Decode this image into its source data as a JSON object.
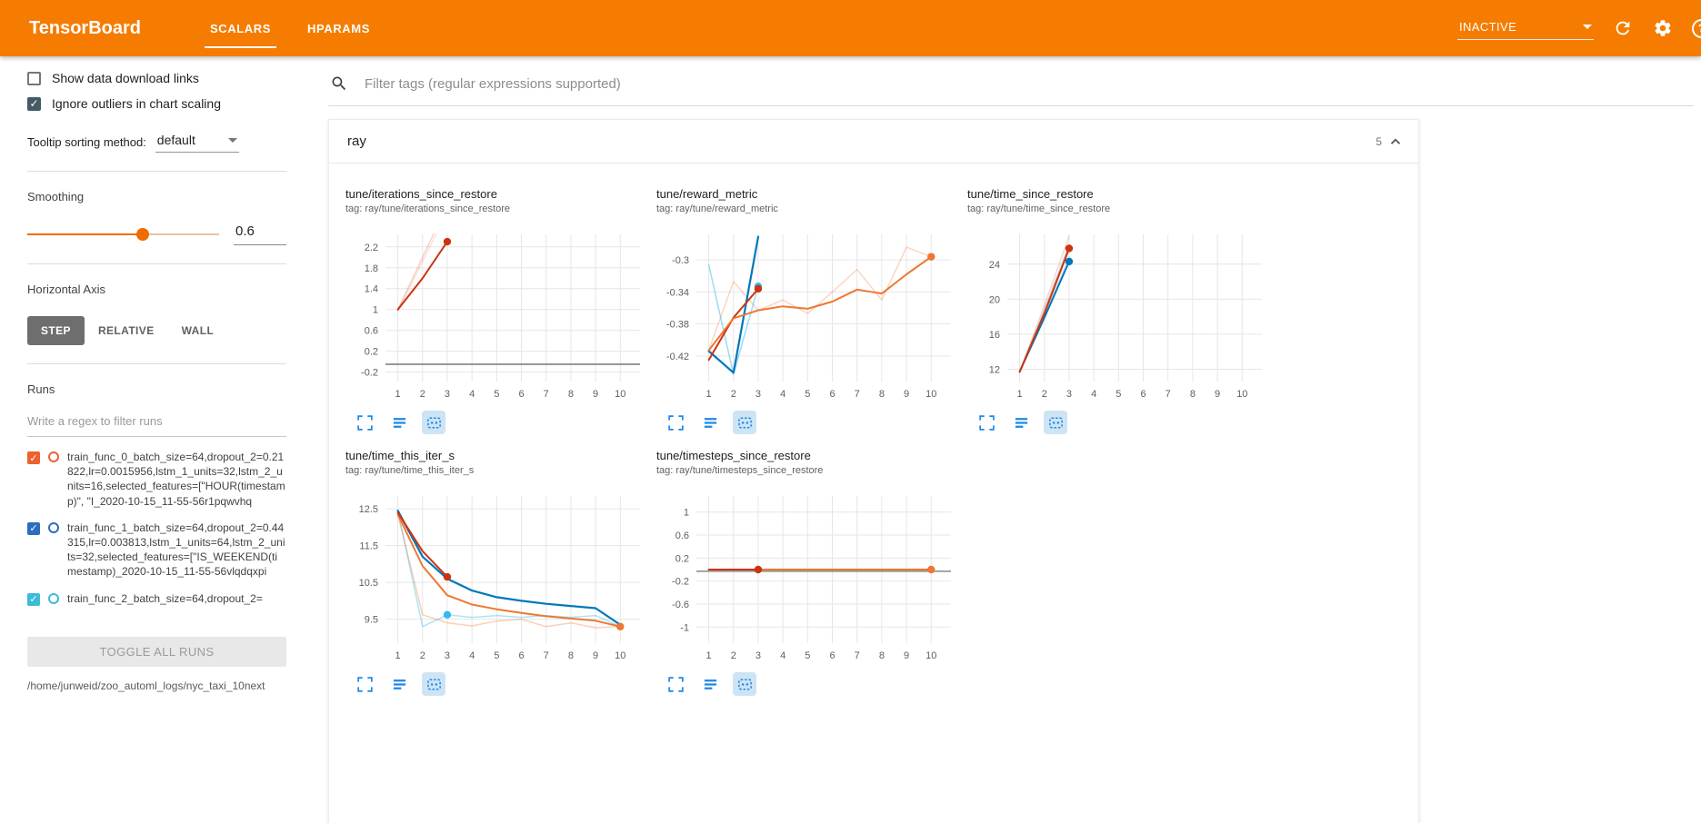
{
  "header": {
    "title": "TensorBoard",
    "tabs": [
      {
        "label": "SCALARS",
        "active": true
      },
      {
        "label": "HPARAMS",
        "active": false
      }
    ],
    "status": "INACTIVE",
    "accent_color": "#f57c00"
  },
  "sidebar": {
    "show_download_label": "Show data download links",
    "show_download_checked": false,
    "ignore_outliers_label": "Ignore outliers in chart scaling",
    "ignore_outliers_checked": true,
    "tooltip_sorting_label": "Tooltip sorting method:",
    "tooltip_sorting_value": "default",
    "smoothing_label": "Smoothing",
    "smoothing_value": "0.6",
    "horizontal_axis_label": "Horizontal Axis",
    "axis_options": [
      "STEP",
      "RELATIVE",
      "WALL"
    ],
    "axis_selected": "STEP",
    "runs_label": "Runs",
    "runs_filter_placeholder": "Write a regex to filter runs",
    "runs": [
      {
        "label": "train_func_0_batch_size=64,dropout_2=0.21822,lr=0.0015956,lstm_1_units=32,lstm_2_units=16,selected_features=[\"HOUR(timestamp)\", \"I_2020-10-15_11-55-56r1pqwvhq",
        "checked": true,
        "color": "#ee6130"
      },
      {
        "label": "train_func_1_batch_size=64,dropout_2=0.44315,lr=0.003813,lstm_1_units=64,lstm_2_units=32,selected_features=[\"IS_WEEKEND(timestamp)_2020-10-15_11-55-56vlqdqxpi",
        "checked": true,
        "color": "#2b6dbf"
      },
      {
        "label": "train_func_2_batch_size=64,dropout_2=",
        "checked": true,
        "color": "#3dbbd9"
      }
    ],
    "toggle_all_label": "TOGGLE ALL RUNS",
    "log_dir": "/home/junweid/zoo_automl_logs/nyc_taxi_10next"
  },
  "main": {
    "filter_placeholder": "Filter tags (regular expressions supported)",
    "group": {
      "title": "ray",
      "count": "5"
    }
  },
  "chart_data": [
    {
      "type": "line",
      "title": "tune/iterations_since_restore",
      "tag": "tag: ray/tune/iterations_since_restore",
      "xlim": [
        0.5,
        10.8
      ],
      "ylim": [
        -0.38,
        2.44
      ],
      "xticks": [
        1,
        2,
        3,
        4,
        5,
        6,
        7,
        8,
        9,
        10
      ],
      "yticks": [
        2.2,
        1.8,
        1.4,
        1,
        0.6,
        0.2,
        -0.2
      ],
      "series": [
        {
          "name": "train_func_0 raw",
          "color": "#cc3311",
          "opacity": 0.22,
          "width": 1.5,
          "points": [
            [
              1,
              1
            ],
            [
              2,
              2
            ],
            [
              3,
              3
            ]
          ]
        },
        {
          "name": "train_func_2 raw",
          "color": "#ee7733",
          "opacity": 0.22,
          "width": 1.5,
          "points": [
            [
              1,
              0.97
            ],
            [
              2,
              1.92
            ],
            [
              3,
              2.87
            ]
          ]
        },
        {
          "name": "constant run",
          "color": "#777777",
          "opacity": 1,
          "width": 1.5,
          "points": [
            [
              0.5,
              -0.05
            ],
            [
              10.8,
              -0.05
            ]
          ]
        },
        {
          "name": "train_func_0 smoothed",
          "color": "#cc3311",
          "opacity": 1,
          "width": 2,
          "points": [
            [
              1,
              1
            ],
            [
              2,
              1.6
            ],
            [
              3,
              2.3
            ]
          ],
          "dots": [
            [
              3,
              2.3
            ]
          ]
        }
      ]
    },
    {
      "type": "line",
      "title": "tune/reward_metric",
      "tag": "tag: ray/tune/reward_metric",
      "xlim": [
        0.5,
        10.8
      ],
      "ylim": [
        -0.452,
        -0.268
      ],
      "xticks": [
        1,
        2,
        3,
        4,
        5,
        6,
        7,
        8,
        9,
        10
      ],
      "yticks": [
        -0.3,
        -0.34,
        -0.38,
        -0.42
      ],
      "series": [
        {
          "name": "orange raw",
          "color": "#ee7733",
          "opacity": 0.3,
          "width": 1.5,
          "points": [
            [
              1,
              -0.413
            ],
            [
              2,
              -0.327
            ],
            [
              3,
              -0.363
            ],
            [
              4,
              -0.35
            ],
            [
              5,
              -0.367
            ],
            [
              6,
              -0.34
            ],
            [
              7,
              -0.312
            ],
            [
              8,
              -0.35
            ],
            [
              9,
              -0.284
            ],
            [
              10,
              -0.296
            ]
          ]
        },
        {
          "name": "cyan raw",
          "color": "#33bbee",
          "opacity": 0.5,
          "width": 1.5,
          "points": [
            [
              1,
              -0.306
            ],
            [
              2,
              -0.443
            ],
            [
              3,
              -0.333
            ]
          ],
          "dots": [
            [
              3,
              -0.333
            ]
          ]
        },
        {
          "name": "blue smoothed",
          "color": "#0077bb",
          "opacity": 1,
          "width": 2.2,
          "points": [
            [
              1,
              -0.414
            ],
            [
              2,
              -0.441
            ],
            [
              3,
              -0.271
            ]
          ]
        },
        {
          "name": "red smoothed",
          "color": "#cc3311",
          "opacity": 1,
          "width": 2,
          "points": [
            [
              1,
              -0.425
            ],
            [
              2,
              -0.372
            ],
            [
              3,
              -0.336
            ]
          ],
          "dots": [
            [
              3,
              -0.336
            ]
          ]
        },
        {
          "name": "orange smoothed",
          "color": "#ee7733",
          "opacity": 1,
          "width": 2,
          "points": [
            [
              1,
              -0.413
            ],
            [
              2,
              -0.373
            ],
            [
              3,
              -0.363
            ],
            [
              4,
              -0.358
            ],
            [
              5,
              -0.361
            ],
            [
              6,
              -0.352
            ],
            [
              7,
              -0.337
            ],
            [
              8,
              -0.342
            ],
            [
              9,
              -0.318
            ],
            [
              10,
              -0.296
            ]
          ],
          "dots": [
            [
              10,
              -0.296
            ]
          ]
        }
      ]
    },
    {
      "type": "line",
      "title": "tune/time_since_restore",
      "tag": "tag: ray/tune/time_since_restore",
      "xlim": [
        0.5,
        10.8
      ],
      "ylim": [
        10.6,
        27.4
      ],
      "xticks": [
        1,
        2,
        3,
        4,
        5,
        6,
        7,
        8,
        9,
        10
      ],
      "yticks": [
        24,
        20,
        16,
        12
      ],
      "series": [
        {
          "name": "red raw",
          "color": "#cc3311",
          "opacity": 0.2,
          "width": 1.5,
          "points": [
            [
              1,
              11.7
            ],
            [
              2,
              19.3
            ],
            [
              3,
              27.2
            ]
          ]
        },
        {
          "name": "gray raw",
          "color": "#999999",
          "opacity": 0.45,
          "width": 1.5,
          "points": [
            [
              1,
              11.7
            ],
            [
              2,
              18.8
            ],
            [
              3,
              26.2
            ]
          ]
        },
        {
          "name": "cyan raw",
          "color": "#33bbee",
          "opacity": 0.3,
          "width": 1.5,
          "points": [
            [
              1,
              11.8
            ],
            [
              2,
              18.1
            ],
            [
              3,
              24.8
            ]
          ]
        },
        {
          "name": "blue smoothed",
          "color": "#0077bb",
          "opacity": 1,
          "width": 2,
          "points": [
            [
              1,
              11.75
            ],
            [
              2,
              17.9
            ],
            [
              3,
              24.3
            ]
          ],
          "dots": [
            [
              3,
              24.3
            ]
          ]
        },
        {
          "name": "red smoothed",
          "color": "#cc3311",
          "opacity": 1,
          "width": 2,
          "points": [
            [
              1,
              11.7
            ],
            [
              2,
              18.4
            ],
            [
              3,
              25.8
            ]
          ],
          "dots": [
            [
              3,
              25.8
            ]
          ]
        }
      ]
    },
    {
      "type": "line",
      "title": "tune/time_this_iter_s",
      "tag": "tag: ray/tune/time_this_iter_s",
      "xlim": [
        0.5,
        10.8
      ],
      "ylim": [
        8.85,
        12.85
      ],
      "xticks": [
        1,
        2,
        3,
        4,
        5,
        6,
        7,
        8,
        9,
        10
      ],
      "yticks": [
        12.5,
        11.5,
        10.5,
        9.5
      ],
      "series": [
        {
          "name": "cyan raw",
          "color": "#33bbee",
          "opacity": 0.4,
          "width": 1.5,
          "points": [
            [
              1,
              12.45
            ],
            [
              2,
              9.3
            ],
            [
              3,
              9.62
            ],
            [
              4,
              9.55
            ],
            [
              5,
              9.6
            ],
            [
              6,
              9.55
            ],
            [
              7,
              9.6
            ],
            [
              8,
              9.55
            ],
            [
              9,
              9.6
            ],
            [
              10,
              9.3
            ]
          ],
          "dots": [
            [
              3,
              9.62
            ]
          ]
        },
        {
          "name": "orange raw",
          "color": "#ee7733",
          "opacity": 0.35,
          "width": 1.5,
          "points": [
            [
              1,
              12.35
            ],
            [
              2,
              9.62
            ],
            [
              3,
              9.4
            ],
            [
              4,
              9.32
            ],
            [
              5,
              9.45
            ],
            [
              6,
              9.5
            ],
            [
              7,
              9.3
            ],
            [
              8,
              9.4
            ],
            [
              9,
              9.27
            ],
            [
              10,
              9.3
            ]
          ]
        },
        {
          "name": "blue smoothed",
          "color": "#0077bb",
          "opacity": 1,
          "width": 2.2,
          "points": [
            [
              1,
              12.45
            ],
            [
              2,
              11.2
            ],
            [
              3,
              10.6
            ],
            [
              4,
              10.28
            ],
            [
              5,
              10.1
            ],
            [
              6,
              10.0
            ],
            [
              7,
              9.92
            ],
            [
              8,
              9.86
            ],
            [
              9,
              9.8
            ],
            [
              10,
              9.35
            ]
          ]
        },
        {
          "name": "orange smoothed",
          "color": "#ee7733",
          "opacity": 1,
          "width": 2,
          "points": [
            [
              1,
              12.35
            ],
            [
              2,
              10.95
            ],
            [
              3,
              10.15
            ],
            [
              4,
              9.9
            ],
            [
              5,
              9.77
            ],
            [
              6,
              9.67
            ],
            [
              7,
              9.58
            ],
            [
              8,
              9.52
            ],
            [
              9,
              9.46
            ],
            [
              10,
              9.3
            ]
          ],
          "dots": [
            [
              10,
              9.3
            ]
          ]
        },
        {
          "name": "red smoothed",
          "color": "#cc3311",
          "opacity": 1,
          "width": 2,
          "points": [
            [
              1,
              12.4
            ],
            [
              2,
              11.35
            ],
            [
              3,
              10.65
            ]
          ],
          "dots": [
            [
              3,
              10.65
            ]
          ]
        }
      ]
    },
    {
      "type": "line",
      "title": "tune/timesteps_since_restore",
      "tag": "tag: ray/tune/timesteps_since_restore",
      "xlim": [
        0.5,
        10.8
      ],
      "ylim": [
        -1.28,
        1.28
      ],
      "xticks": [
        1,
        2,
        3,
        4,
        5,
        6,
        7,
        8,
        9,
        10
      ],
      "yticks": [
        1,
        0.6,
        0.2,
        -0.2,
        -0.6,
        -1
      ],
      "series": [
        {
          "name": "gray zero line",
          "color": "#888888",
          "opacity": 1,
          "width": 1.5,
          "points": [
            [
              0.5,
              -0.03
            ],
            [
              10.8,
              -0.03
            ]
          ]
        },
        {
          "name": "orange",
          "color": "#ee7733",
          "opacity": 1,
          "width": 2,
          "points": [
            [
              1,
              0
            ],
            [
              10,
              0
            ]
          ],
          "dots": [
            [
              10,
              0
            ]
          ]
        },
        {
          "name": "red",
          "color": "#cc3311",
          "opacity": 1,
          "width": 2,
          "points": [
            [
              1,
              0
            ],
            [
              3,
              0
            ]
          ],
          "dots": [
            [
              3,
              0
            ]
          ]
        }
      ]
    }
  ]
}
